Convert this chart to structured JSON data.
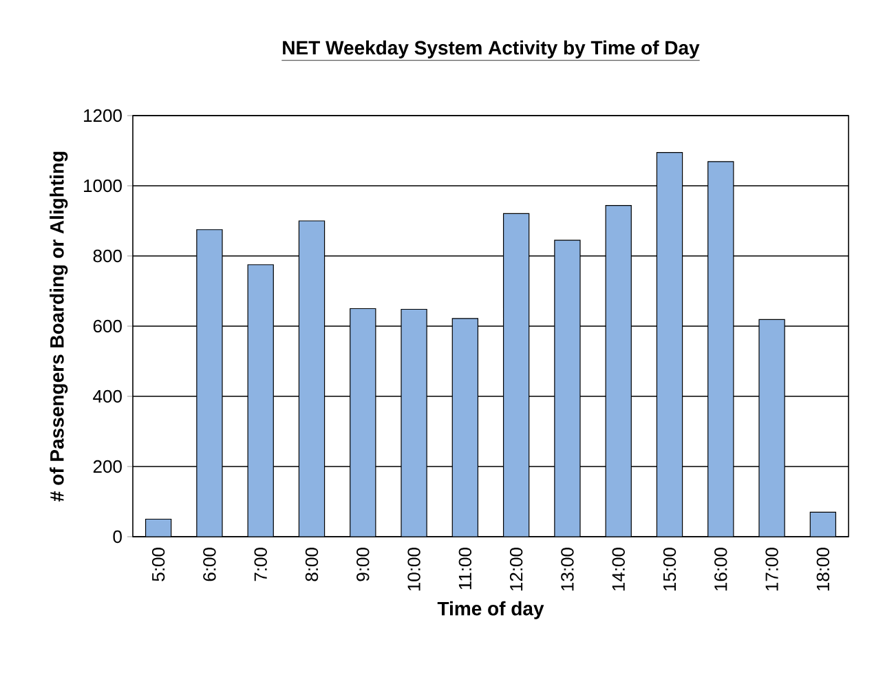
{
  "chart_data": {
    "type": "bar",
    "title": "NET Weekday System Activity by Time of Day",
    "xlabel": "Time of day",
    "ylabel": "# of Passengers Boarding or Alighting",
    "categories": [
      "5:00",
      "6:00",
      "7:00",
      "8:00",
      "9:00",
      "10:00",
      "11:00",
      "12:00",
      "13:00",
      "14:00",
      "15:00",
      "16:00",
      "17:00",
      "18:00"
    ],
    "values": [
      50,
      875,
      775,
      900,
      650,
      648,
      622,
      921,
      845,
      944,
      1095,
      1069,
      619,
      70
    ],
    "color": "#8db3e2",
    "ylim": [
      0,
      1200
    ],
    "yticks": [
      0,
      200,
      400,
      600,
      800,
      1000,
      1200
    ],
    "grid": "y"
  }
}
